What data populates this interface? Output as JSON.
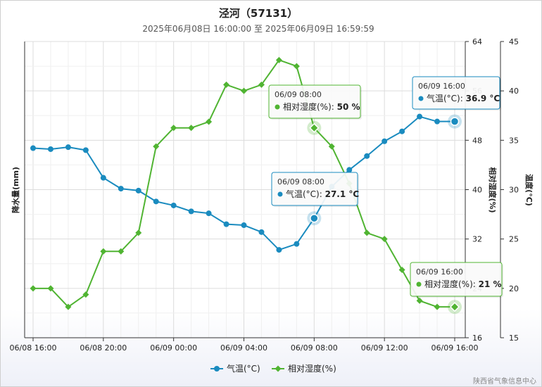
{
  "chart_data": {
    "type": "line",
    "title": "泾河（57131）",
    "subtitle": "2025年06月08日 16:00:00 至 2025年06月09日 16:59:59",
    "x_labels": [
      "06/08 16:00",
      "06/08 20:00",
      "06/09 00:00",
      "06/09 04:00",
      "06/09 08:00",
      "06/09 12:00",
      "06/09 16:00"
    ],
    "x_hours": [
      0,
      4,
      8,
      12,
      16,
      20,
      24
    ],
    "xlim": [
      0,
      24
    ],
    "axes": {
      "precip": {
        "label": "降水量(mm)"
      },
      "humidity": {
        "label": "相对湿度(%)",
        "ylim": [
          16,
          64
        ],
        "ticks": [
          16,
          24,
          32,
          40,
          48,
          56,
          64
        ]
      },
      "temperature": {
        "label": "温度(°C)",
        "ylim": [
          15,
          45
        ],
        "ticks": [
          15,
          20,
          25,
          30,
          35,
          40,
          45
        ]
      }
    },
    "grid": true,
    "legend_position": "bottom-center",
    "series": [
      {
        "name": "气温(°C)",
        "axis": "temperature",
        "color": "#1a8bbf",
        "marker": "circle",
        "x": [
          0,
          1,
          2,
          3,
          4,
          5,
          6,
          7,
          8,
          9,
          10,
          11,
          12,
          13,
          14,
          15,
          16,
          17,
          18,
          19,
          20,
          21,
          22,
          23,
          24
        ],
        "values": [
          34.2,
          34.1,
          34.3,
          34.0,
          31.2,
          30.1,
          29.9,
          28.8,
          28.4,
          27.8,
          27.6,
          26.5,
          26.4,
          25.7,
          23.9,
          24.5,
          27.1,
          30.3,
          32.0,
          33.4,
          34.9,
          35.9,
          37.4,
          36.9,
          36.9
        ],
        "tooltip": {
          "time": "06/09 16:00",
          "label": "气温(°C): ",
          "value": "36.9 °C"
        }
      },
      {
        "name": "相对湿度(%)",
        "axis": "humidity",
        "color": "#50b432",
        "marker": "diamond",
        "x": [
          0,
          1,
          2,
          3,
          4,
          5,
          6,
          7,
          8,
          9,
          10,
          11,
          12,
          13,
          14,
          15,
          16,
          17,
          18,
          19,
          20,
          21,
          22,
          23,
          24
        ],
        "values": [
          24,
          24,
          21,
          23,
          30,
          30,
          33,
          47,
          50,
          50,
          51,
          57,
          56,
          57,
          61,
          60,
          50,
          47,
          41,
          33,
          32,
          27,
          22,
          21,
          21
        ],
        "tooltip": {
          "time": "06/09 08:00",
          "label": "相对湿度(%): ",
          "value": "50 %"
        }
      }
    ],
    "extra_tooltips": [
      {
        "series": "气温(°C)",
        "time": "06/09 08:00",
        "label": "气温(°C): ",
        "value": "27.1 °C"
      },
      {
        "series": "相对湿度(%)",
        "time": "06/09 16:00",
        "label": "相对湿度(%): ",
        "value": "21 %"
      }
    ]
  },
  "credit": "陕西省气象信息中心"
}
